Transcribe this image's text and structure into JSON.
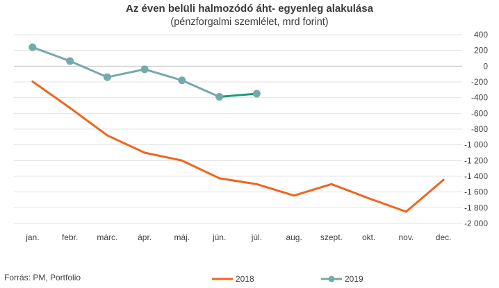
{
  "chart_data": {
    "type": "line",
    "title": "Az éven belüli halmozódó áht- egyenleg alakulása",
    "subtitle": "(pénzforgalmi szemlélet, mrd forint)",
    "categories": [
      "jan.",
      "febr.",
      "márc.",
      "ápr.",
      "máj.",
      "jún.",
      "júl.",
      "aug.",
      "szept.",
      "okt.",
      "nov.",
      "dec."
    ],
    "ylim": [
      -2000,
      400
    ],
    "yticks": [
      400,
      200,
      0,
      -200,
      -400,
      -600,
      -800,
      -1000,
      -1200,
      -1400,
      -1600,
      -1800,
      -2000
    ],
    "ytick_labels": [
      "400",
      "200",
      "0",
      "-200",
      "-400",
      "-600",
      "-800",
      "-1 000",
      "-1 200",
      "-1 400",
      "-1 600",
      "-1 800",
      "-2 000"
    ],
    "grid": true,
    "legend_position": "bottom",
    "series": [
      {
        "name": "2018",
        "color": "#f0641e",
        "markers": false,
        "values": [
          -195,
          -530,
          -880,
          -1100,
          -1200,
          -1425,
          -1500,
          -1645,
          -1500,
          -1680,
          -1850,
          -1445
        ]
      },
      {
        "name": "2019",
        "color": "#74aaa9",
        "highlight_color": "#1a9b7b",
        "markers": true,
        "values": [
          240,
          65,
          -140,
          -40,
          -180,
          -390,
          -350,
          null,
          null,
          null,
          null,
          null
        ]
      }
    ]
  },
  "source": "Forrás:  PM, Portfolio"
}
